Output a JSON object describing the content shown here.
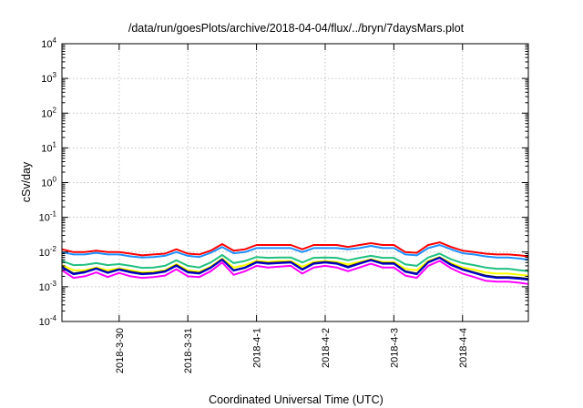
{
  "chart_data": {
    "type": "line",
    "title": "/data/run/goesPlots/archive/2018-04-04/flux/../bryn/7daysMars.plot",
    "xlabel": "Coordinated Universal Time (UTC)",
    "ylabel": "cSv/day",
    "yscale": "log",
    "ylim": [
      0.0001,
      10000
    ],
    "y_tick_labels": [
      {
        "base": "10",
        "exp": "-4"
      },
      {
        "base": "10",
        "exp": "-3"
      },
      {
        "base": "10",
        "exp": "-2"
      },
      {
        "base": "10",
        "exp": "-1"
      },
      {
        "base": "10",
        "exp": "0"
      },
      {
        "base": "10",
        "exp": "1"
      },
      {
        "base": "10",
        "exp": "2"
      },
      {
        "base": "10",
        "exp": "3"
      },
      {
        "base": "10",
        "exp": "4"
      }
    ],
    "xlim": [
      "2018-03-29 04:00",
      "2018-04-04 23:00"
    ],
    "x_ticks": [
      "2018-3-30",
      "2018-3-31",
      "2018-4-1",
      "2018-4-2",
      "2018-4-3",
      "2018-4-4"
    ],
    "grid": true,
    "legend": "none",
    "x": [
      "2018-03-29 04:00",
      "2018-03-29 08:00",
      "2018-03-29 12:00",
      "2018-03-29 16:00",
      "2018-03-29 20:00",
      "2018-03-30 00:00",
      "2018-03-30 04:00",
      "2018-03-30 08:00",
      "2018-03-30 12:00",
      "2018-03-30 16:00",
      "2018-03-30 20:00",
      "2018-03-31 00:00",
      "2018-03-31 04:00",
      "2018-03-31 08:00",
      "2018-03-31 12:00",
      "2018-03-31 16:00",
      "2018-03-31 20:00",
      "2018-04-01 00:00",
      "2018-04-01 04:00",
      "2018-04-01 08:00",
      "2018-04-01 12:00",
      "2018-04-01 16:00",
      "2018-04-01 20:00",
      "2018-04-02 00:00",
      "2018-04-02 04:00",
      "2018-04-02 08:00",
      "2018-04-02 12:00",
      "2018-04-02 16:00",
      "2018-04-02 20:00",
      "2018-04-03 00:00",
      "2018-04-03 04:00",
      "2018-04-03 08:00",
      "2018-04-03 12:00",
      "2018-04-03 16:00",
      "2018-04-03 20:00",
      "2018-04-04 00:00",
      "2018-04-04 04:00",
      "2018-04-04 08:00",
      "2018-04-04 12:00",
      "2018-04-04 16:00",
      "2018-04-04 20:00",
      "2018-04-04 23:00"
    ],
    "series": [
      {
        "color": "#ff0000",
        "values": [
          0.012,
          0.01,
          0.01,
          0.011,
          0.01,
          0.01,
          0.009,
          0.008,
          0.0085,
          0.009,
          0.012,
          0.009,
          0.0085,
          0.011,
          0.017,
          0.011,
          0.012,
          0.016,
          0.016,
          0.016,
          0.016,
          0.012,
          0.016,
          0.016,
          0.016,
          0.014,
          0.016,
          0.018,
          0.016,
          0.016,
          0.01,
          0.0095,
          0.016,
          0.019,
          0.014,
          0.011,
          0.01,
          0.009,
          0.0085,
          0.0085,
          0.008,
          0.0075
        ]
      },
      {
        "color": "#1e90ff",
        "values": [
          0.01,
          0.0085,
          0.0085,
          0.0095,
          0.0085,
          0.0085,
          0.0075,
          0.007,
          0.0072,
          0.0078,
          0.01,
          0.0078,
          0.0072,
          0.0095,
          0.014,
          0.0092,
          0.01,
          0.013,
          0.013,
          0.013,
          0.013,
          0.01,
          0.013,
          0.013,
          0.013,
          0.012,
          0.013,
          0.015,
          0.013,
          0.013,
          0.0085,
          0.008,
          0.013,
          0.016,
          0.012,
          0.0092,
          0.0085,
          0.0075,
          0.007,
          0.007,
          0.0065,
          0.006
        ]
      },
      {
        "color": "#20c080",
        "values": [
          0.0055,
          0.0042,
          0.0043,
          0.0048,
          0.0042,
          0.0045,
          0.004,
          0.0035,
          0.0036,
          0.004,
          0.0058,
          0.004,
          0.0036,
          0.005,
          0.0082,
          0.0048,
          0.0055,
          0.0072,
          0.0068,
          0.007,
          0.007,
          0.005,
          0.0068,
          0.007,
          0.0068,
          0.0058,
          0.0068,
          0.0078,
          0.0068,
          0.0068,
          0.0044,
          0.004,
          0.007,
          0.009,
          0.0062,
          0.0048,
          0.0042,
          0.0036,
          0.0033,
          0.0033,
          0.003,
          0.0028
        ]
      },
      {
        "color": "#ffff00",
        "values": [
          0.0042,
          0.003,
          0.003,
          0.0036,
          0.003,
          0.0034,
          0.003,
          0.0026,
          0.0027,
          0.003,
          0.0045,
          0.003,
          0.0027,
          0.0038,
          0.0065,
          0.0036,
          0.0042,
          0.0056,
          0.0052,
          0.0055,
          0.0055,
          0.0038,
          0.0052,
          0.0055,
          0.0052,
          0.0044,
          0.0052,
          0.0062,
          0.0052,
          0.0052,
          0.0033,
          0.003,
          0.0055,
          0.0072,
          0.0048,
          0.0036,
          0.0031,
          0.0026,
          0.0024,
          0.0024,
          0.0022,
          0.0021
        ]
      },
      {
        "color": "#1a1a1a",
        "values": [
          0.0038,
          0.0024,
          0.0027,
          0.0034,
          0.0026,
          0.0032,
          0.0027,
          0.0024,
          0.0025,
          0.0028,
          0.0042,
          0.0027,
          0.0025,
          0.0036,
          0.0062,
          0.003,
          0.0036,
          0.0052,
          0.0048,
          0.005,
          0.0052,
          0.0032,
          0.0048,
          0.0052,
          0.0048,
          0.0038,
          0.0048,
          0.006,
          0.0048,
          0.0048,
          0.0028,
          0.0024,
          0.0052,
          0.007,
          0.0044,
          0.0032,
          0.0026,
          0.0021,
          0.0019,
          0.0019,
          0.0018,
          0.0017
        ]
      },
      {
        "color": "#0000cd",
        "values": [
          0.0036,
          0.0023,
          0.0026,
          0.0033,
          0.0025,
          0.0031,
          0.0026,
          0.0023,
          0.0024,
          0.0027,
          0.004,
          0.0026,
          0.0024,
          0.0035,
          0.006,
          0.0029,
          0.0035,
          0.005,
          0.0046,
          0.0048,
          0.005,
          0.0031,
          0.0046,
          0.005,
          0.0046,
          0.0036,
          0.0046,
          0.0058,
          0.0046,
          0.0046,
          0.0027,
          0.0023,
          0.005,
          0.0068,
          0.0042,
          0.0031,
          0.0025,
          0.002,
          0.0018,
          0.0018,
          0.0017,
          0.0016
        ]
      },
      {
        "color": "#ff00ff",
        "values": [
          0.003,
          0.0018,
          0.002,
          0.0026,
          0.0019,
          0.0025,
          0.002,
          0.0018,
          0.0019,
          0.0021,
          0.0032,
          0.002,
          0.0019,
          0.0028,
          0.005,
          0.0022,
          0.0028,
          0.004,
          0.0036,
          0.0038,
          0.004,
          0.0024,
          0.0036,
          0.004,
          0.0036,
          0.0028,
          0.0036,
          0.0046,
          0.0036,
          0.0036,
          0.0021,
          0.0018,
          0.004,
          0.0056,
          0.0034,
          0.0024,
          0.0019,
          0.0015,
          0.0014,
          0.0014,
          0.0013,
          0.0012
        ]
      }
    ]
  }
}
